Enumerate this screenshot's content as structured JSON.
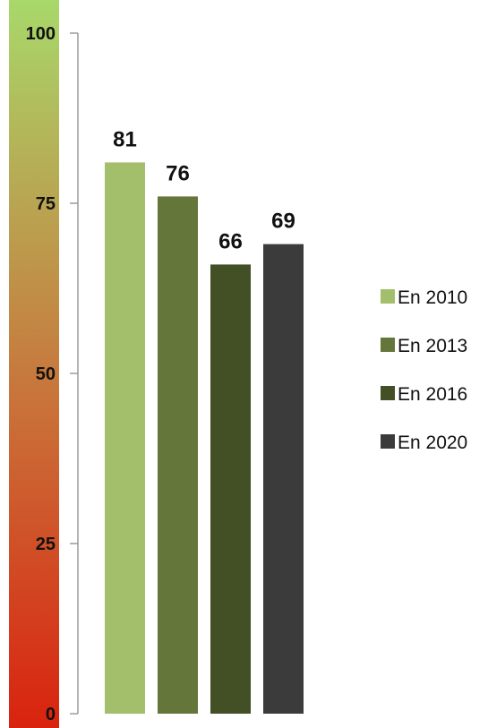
{
  "chart_data": {
    "type": "bar",
    "categories": [
      "En 2010",
      "En 2013",
      "En 2016",
      "En 2020"
    ],
    "values": [
      81,
      76,
      66,
      69
    ],
    "colors": [
      "#a3bf6b",
      "#65763a",
      "#434f24",
      "#3b3b3b"
    ],
    "data_labels": [
      "81",
      "76",
      "66",
      "69"
    ],
    "ylim": [
      0,
      100
    ],
    "yticks": [
      {
        "value": 0,
        "label": "0"
      },
      {
        "value": 25,
        "label": "25"
      },
      {
        "value": 50,
        "label": "50"
      },
      {
        "value": 75,
        "label": "75"
      },
      {
        "value": 100,
        "label": "100"
      }
    ],
    "gradient_scale": {
      "bottom_color": "#d9230f",
      "middle_color": "#c9733a",
      "top_color": "#a8d86a"
    },
    "legend": {
      "position": "right",
      "entries": [
        "En 2010",
        "En 2013",
        "En 2016",
        "En 2020"
      ]
    },
    "grid": false
  }
}
